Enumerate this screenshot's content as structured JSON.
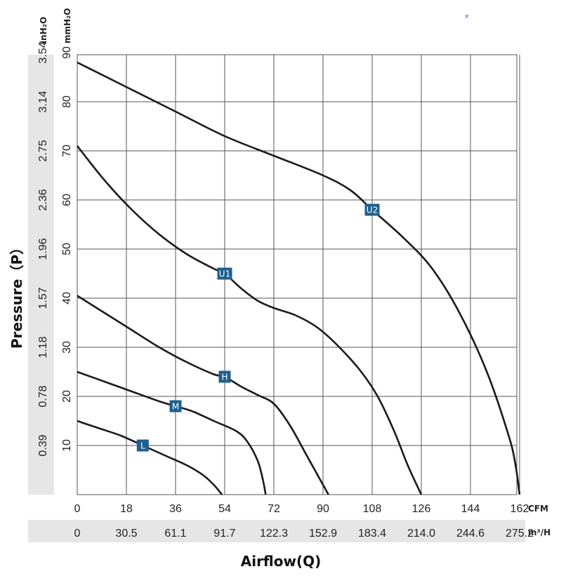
{
  "chart_data": {
    "type": "line",
    "xlabel": "Airflow(Q)",
    "ylabel": "Pressure（P）",
    "x_unit_primary": "CFM",
    "x_unit_secondary": "m³/H",
    "y_unit_primary": "mmH₂O",
    "y_unit_secondary": "inH₂O",
    "xlim": [
      0,
      168
    ],
    "ylim": [
      0,
      90
    ],
    "x_ticks": [
      "0",
      "18",
      "36",
      "54",
      "72",
      "90",
      "108",
      "126",
      "144",
      "162"
    ],
    "x_ticks_secondary": [
      "0",
      "30.5",
      "61.1",
      "91.7",
      "122.3",
      "152.9",
      "183.4",
      "214.0",
      "244.6",
      "275.2"
    ],
    "y_ticks": [
      "10",
      "20",
      "30",
      "40",
      "50",
      "60",
      "70",
      "80",
      "90"
    ],
    "y_ticks_secondary": [
      "0.39",
      "0.78",
      "1.18",
      "1.57",
      "1.96",
      "2.36",
      "2.75",
      "3.14",
      "3.54"
    ],
    "grid": true,
    "series": [
      {
        "name": "U2",
        "label_at": [
          108,
          58
        ],
        "points": [
          [
            0,
            88
          ],
          [
            18,
            83
          ],
          [
            36,
            78
          ],
          [
            54,
            73
          ],
          [
            72,
            69
          ],
          [
            90,
            65
          ],
          [
            100,
            62
          ],
          [
            108,
            58
          ],
          [
            120,
            52
          ],
          [
            130,
            46
          ],
          [
            140,
            37
          ],
          [
            150,
            25
          ],
          [
            158,
            12
          ],
          [
            160.5,
            6
          ],
          [
            162,
            0
          ]
        ]
      },
      {
        "name": "U1",
        "label_at": [
          54,
          45
        ],
        "points": [
          [
            0,
            71
          ],
          [
            10,
            64
          ],
          [
            20,
            58
          ],
          [
            30,
            53
          ],
          [
            40,
            49
          ],
          [
            50,
            46
          ],
          [
            54,
            45
          ],
          [
            60,
            42
          ],
          [
            66,
            39.5
          ],
          [
            72,
            38
          ],
          [
            80,
            36.5
          ],
          [
            88,
            34
          ],
          [
            96,
            30
          ],
          [
            104,
            25
          ],
          [
            110,
            20
          ],
          [
            116,
            13
          ],
          [
            121,
            6
          ],
          [
            126,
            0
          ]
        ]
      },
      {
        "name": "H",
        "label_at": [
          54,
          24
        ],
        "points": [
          [
            0,
            40.5
          ],
          [
            10,
            37
          ],
          [
            20,
            33.5
          ],
          [
            30,
            30
          ],
          [
            40,
            27
          ],
          [
            50,
            24.5
          ],
          [
            54,
            24
          ],
          [
            60,
            22
          ],
          [
            66,
            20.3
          ],
          [
            72,
            18.5
          ],
          [
            78,
            14
          ],
          [
            84,
            8
          ],
          [
            89,
            3
          ],
          [
            92,
            0
          ]
        ]
      },
      {
        "name": "M",
        "label_at": [
          36,
          18
        ],
        "points": [
          [
            0,
            25
          ],
          [
            10,
            23
          ],
          [
            20,
            21
          ],
          [
            30,
            19
          ],
          [
            36,
            18
          ],
          [
            42,
            17
          ],
          [
            50,
            15
          ],
          [
            58,
            13
          ],
          [
            62,
            11
          ],
          [
            66,
            7
          ],
          [
            68,
            3
          ],
          [
            69,
            0
          ]
        ]
      },
      {
        "name": "L",
        "label_at": [
          24,
          10
        ],
        "points": [
          [
            0,
            15
          ],
          [
            8,
            13.5
          ],
          [
            16,
            12
          ],
          [
            24,
            10
          ],
          [
            32,
            8
          ],
          [
            40,
            6
          ],
          [
            46,
            4
          ],
          [
            50,
            2
          ],
          [
            53,
            0
          ]
        ]
      }
    ]
  }
}
